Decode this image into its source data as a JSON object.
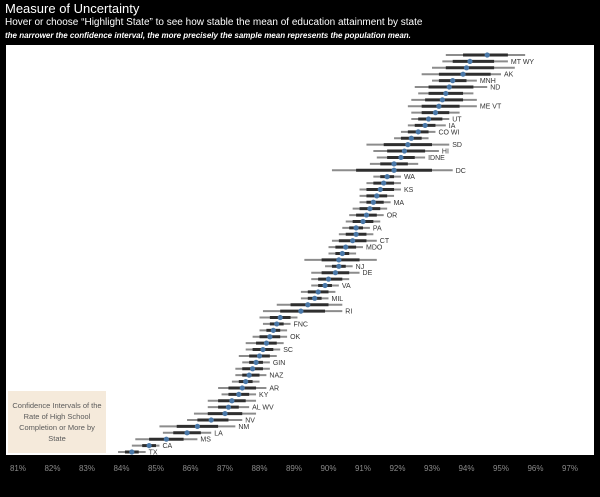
{
  "header": {
    "title": "Measure of Uncertainty",
    "subtitle": "Hover or choose “Highlight State” to see how stable the mean of education attainment by state",
    "note": "the narrower the confidence interval, the more precisely the sample mean represents the population mean."
  },
  "legend_box": {
    "text": "Confidence Intervals of the Rate of High School Completion or More by State"
  },
  "colors": {
    "background": "#000000",
    "plot_background": "#ffffff",
    "point": "#4a78a8",
    "outer_interval": "#8c8c8c",
    "inner_interval": "#2e2e2e",
    "axis_text": "#8a8a8a"
  },
  "chart_data": {
    "type": "scatter",
    "title": "Measure of Uncertainty",
    "xlabel": "",
    "ylabel": "",
    "x_tick_labels": [
      "81%",
      "82%",
      "83%",
      "84%",
      "85%",
      "86%",
      "87%",
      "88%",
      "89%",
      "90%",
      "91%",
      "92%",
      "93%",
      "94%",
      "95%",
      "96%",
      "97%"
    ],
    "xlim": [
      80.8,
      97.3
    ],
    "grid": false,
    "series": [
      {
        "values": [
          {
            "label": "",
            "mean": 94.6,
            "inner": [
              93.9,
              95.2
            ],
            "outer": [
              93.4,
              95.7
            ]
          },
          {
            "label": "MT WY",
            "mean": 94.1,
            "inner": [
              93.6,
              94.8
            ],
            "outer": [
              93.3,
              95.2
            ]
          },
          {
            "label": "",
            "mean": 94.0,
            "inner": [
              93.4,
              94.8
            ],
            "outer": [
              93.0,
              95.4
            ]
          },
          {
            "label": "AK",
            "mean": 93.9,
            "inner": [
              93.2,
              94.7
            ],
            "outer": [
              92.7,
              95.0
            ]
          },
          {
            "label": "MNH",
            "mean": 93.6,
            "inner": [
              93.2,
              94.0
            ],
            "outer": [
              93.0,
              94.3
            ]
          },
          {
            "label": "ND",
            "mean": 93.5,
            "inner": [
              92.9,
              94.2
            ],
            "outer": [
              92.5,
              94.6
            ]
          },
          {
            "label": "",
            "mean": 93.4,
            "inner": [
              92.9,
              93.9
            ],
            "outer": [
              92.6,
              94.2
            ]
          },
          {
            "label": "",
            "mean": 93.3,
            "inner": [
              92.8,
              93.9
            ],
            "outer": [
              92.4,
              94.3
            ]
          },
          {
            "label": "ME VT",
            "mean": 93.2,
            "inner": [
              92.7,
              93.8
            ],
            "outer": [
              92.3,
              94.3
            ]
          },
          {
            "label": "",
            "mean": 93.1,
            "inner": [
              92.7,
              93.5
            ],
            "outer": [
              92.4,
              93.8
            ]
          },
          {
            "label": "UT",
            "mean": 92.9,
            "inner": [
              92.6,
              93.3
            ],
            "outer": [
              92.4,
              93.5
            ]
          },
          {
            "label": "IA",
            "mean": 92.8,
            "inner": [
              92.5,
              93.1
            ],
            "outer": [
              92.3,
              93.4
            ]
          },
          {
            "label": "CO WI",
            "mean": 92.6,
            "inner": [
              92.3,
              92.9
            ],
            "outer": [
              92.1,
              93.1
            ]
          },
          {
            "label": "",
            "mean": 92.4,
            "inner": [
              92.1,
              92.7
            ],
            "outer": [
              91.9,
              92.9
            ]
          },
          {
            "label": "SD",
            "mean": 92.3,
            "inner": [
              91.6,
              93.0
            ],
            "outer": [
              91.1,
              93.5
            ]
          },
          {
            "label": "HI",
            "mean": 92.2,
            "inner": [
              91.7,
              92.8
            ],
            "outer": [
              91.3,
              93.2
            ]
          },
          {
            "label": "IDNE",
            "mean": 92.1,
            "inner": [
              91.7,
              92.5
            ],
            "outer": [
              91.4,
              92.8
            ]
          },
          {
            "label": "",
            "mean": 91.9,
            "inner": [
              91.5,
              92.3
            ],
            "outer": [
              91.2,
              92.6
            ]
          },
          {
            "label": "DC",
            "mean": 91.9,
            "inner": [
              90.8,
              93.0
            ],
            "outer": [
              90.1,
              93.6
            ]
          },
          {
            "label": "WA",
            "mean": 91.7,
            "inner": [
              91.5,
              91.9
            ],
            "outer": [
              91.3,
              92.1
            ]
          },
          {
            "label": "",
            "mean": 91.6,
            "inner": [
              91.3,
              91.9
            ],
            "outer": [
              91.1,
              92.1
            ]
          },
          {
            "label": "KS",
            "mean": 91.5,
            "inner": [
              91.1,
              91.9
            ],
            "outer": [
              90.9,
              92.1
            ]
          },
          {
            "label": "",
            "mean": 91.4,
            "inner": [
              91.1,
              91.7
            ],
            "outer": [
              90.9,
              91.9
            ]
          },
          {
            "label": "MA",
            "mean": 91.3,
            "inner": [
              91.1,
              91.6
            ],
            "outer": [
              90.9,
              91.8
            ]
          },
          {
            "label": "",
            "mean": 91.2,
            "inner": [
              90.9,
              91.5
            ],
            "outer": [
              90.7,
              91.7
            ]
          },
          {
            "label": "OR",
            "mean": 91.1,
            "inner": [
              90.8,
              91.4
            ],
            "outer": [
              90.6,
              91.6
            ]
          },
          {
            "label": "",
            "mean": 91.0,
            "inner": [
              90.7,
              91.3
            ],
            "outer": [
              90.5,
              91.5
            ]
          },
          {
            "label": "PA",
            "mean": 90.8,
            "inner": [
              90.6,
              91.0
            ],
            "outer": [
              90.4,
              91.2
            ]
          },
          {
            "label": "",
            "mean": 90.8,
            "inner": [
              90.5,
              91.1
            ],
            "outer": [
              90.3,
              91.3
            ]
          },
          {
            "label": "CT",
            "mean": 90.7,
            "inner": [
              90.3,
              91.1
            ],
            "outer": [
              90.1,
              91.4
            ]
          },
          {
            "label": "MDO",
            "mean": 90.5,
            "inner": [
              90.2,
              90.8
            ],
            "outer": [
              90.0,
              91.0
            ]
          },
          {
            "label": "",
            "mean": 90.4,
            "inner": [
              90.2,
              90.6
            ],
            "outer": [
              90.0,
              90.8
            ]
          },
          {
            "label": "",
            "mean": 90.3,
            "inner": [
              89.8,
              90.9
            ],
            "outer": [
              89.3,
              91.4
            ]
          },
          {
            "label": "NJ",
            "mean": 90.3,
            "inner": [
              90.1,
              90.5
            ],
            "outer": [
              89.9,
              90.7
            ]
          },
          {
            "label": "DE",
            "mean": 90.2,
            "inner": [
              89.8,
              90.6
            ],
            "outer": [
              89.5,
              90.9
            ]
          },
          {
            "label": "",
            "mean": 90.0,
            "inner": [
              89.7,
              90.4
            ],
            "outer": [
              89.5,
              90.6
            ]
          },
          {
            "label": "VA",
            "mean": 89.9,
            "inner": [
              89.7,
              90.1
            ],
            "outer": [
              89.5,
              90.3
            ]
          },
          {
            "label": "",
            "mean": 89.7,
            "inner": [
              89.4,
              90.0
            ],
            "outer": [
              89.2,
              90.2
            ]
          },
          {
            "label": "MIL",
            "mean": 89.6,
            "inner": [
              89.4,
              89.8
            ],
            "outer": [
              89.2,
              90.0
            ]
          },
          {
            "label": "",
            "mean": 89.4,
            "inner": [
              88.9,
              90.0
            ],
            "outer": [
              88.5,
              90.4
            ]
          },
          {
            "label": "RI",
            "mean": 89.2,
            "inner": [
              88.6,
              89.9
            ],
            "outer": [
              88.1,
              90.4
            ]
          },
          {
            "label": "",
            "mean": 88.6,
            "inner": [
              88.3,
              88.9
            ],
            "outer": [
              88.0,
              89.1
            ]
          },
          {
            "label": "FNC",
            "mean": 88.5,
            "inner": [
              88.3,
              88.7
            ],
            "outer": [
              88.1,
              88.9
            ]
          },
          {
            "label": "",
            "mean": 88.4,
            "inner": [
              88.2,
              88.6
            ],
            "outer": [
              88.0,
              88.8
            ]
          },
          {
            "label": "OK",
            "mean": 88.3,
            "inner": [
              88.0,
              88.6
            ],
            "outer": [
              87.8,
              88.8
            ]
          },
          {
            "label": "",
            "mean": 88.2,
            "inner": [
              87.9,
              88.5
            ],
            "outer": [
              87.6,
              88.7
            ]
          },
          {
            "label": "SC",
            "mean": 88.1,
            "inner": [
              87.8,
              88.4
            ],
            "outer": [
              87.6,
              88.6
            ]
          },
          {
            "label": "",
            "mean": 88.0,
            "inner": [
              87.7,
              88.3
            ],
            "outer": [
              87.4,
              88.5
            ]
          },
          {
            "label": "GIN",
            "mean": 87.9,
            "inner": [
              87.7,
              88.1
            ],
            "outer": [
              87.5,
              88.3
            ]
          },
          {
            "label": "",
            "mean": 87.8,
            "inner": [
              87.5,
              88.1
            ],
            "outer": [
              87.3,
              88.3
            ]
          },
          {
            "label": "NAZ",
            "mean": 87.7,
            "inner": [
              87.5,
              88.0
            ],
            "outer": [
              87.3,
              88.2
            ]
          },
          {
            "label": "",
            "mean": 87.6,
            "inner": [
              87.4,
              87.8
            ],
            "outer": [
              87.2,
              88.0
            ]
          },
          {
            "label": "AR",
            "mean": 87.5,
            "inner": [
              87.1,
              87.9
            ],
            "outer": [
              86.8,
              88.2
            ]
          },
          {
            "label": "KY",
            "mean": 87.4,
            "inner": [
              87.1,
              87.7
            ],
            "outer": [
              86.9,
              87.9
            ]
          },
          {
            "label": "",
            "mean": 87.2,
            "inner": [
              86.8,
              87.6
            ],
            "outer": [
              86.5,
              87.9
            ]
          },
          {
            "label": "AL WV",
            "mean": 87.1,
            "inner": [
              86.8,
              87.4
            ],
            "outer": [
              86.5,
              87.7
            ]
          },
          {
            "label": "",
            "mean": 87.0,
            "inner": [
              86.5,
              87.5
            ],
            "outer": [
              86.1,
              87.9
            ]
          },
          {
            "label": "NV",
            "mean": 86.6,
            "inner": [
              86.2,
              87.1
            ],
            "outer": [
              85.9,
              87.5
            ]
          },
          {
            "label": "NM",
            "mean": 86.2,
            "inner": [
              85.6,
              86.8
            ],
            "outer": [
              85.1,
              87.3
            ]
          },
          {
            "label": "LA",
            "mean": 85.9,
            "inner": [
              85.5,
              86.3
            ],
            "outer": [
              85.2,
              86.6
            ]
          },
          {
            "label": "MS",
            "mean": 85.3,
            "inner": [
              84.8,
              85.8
            ],
            "outer": [
              84.4,
              86.2
            ]
          },
          {
            "label": "CA",
            "mean": 84.8,
            "inner": [
              84.6,
              85.0
            ],
            "outer": [
              84.3,
              85.1
            ]
          },
          {
            "label": "TX",
            "mean": 84.3,
            "inner": [
              84.1,
              84.5
            ],
            "outer": [
              83.9,
              84.7
            ]
          }
        ]
      }
    ]
  }
}
